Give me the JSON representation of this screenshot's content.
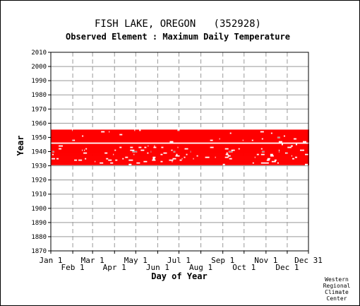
{
  "chart_data": {
    "type": "heatmap",
    "title": "FISH LAKE, OREGON   (352928)",
    "subtitle": "Observed Element : Maximum Daily Temperature",
    "xlabel": "Day of Year",
    "ylabel": "Year",
    "x_ticks_top_row": [
      "Jan 1",
      "Mar 1",
      "May 1",
      "Jul 1",
      "Sep 1",
      "Nov 1",
      "Dec 31"
    ],
    "x_ticks_bottom_row": [
      "Feb 1",
      "Apr 1",
      "Jun 1",
      "Aug 1",
      "Oct 1",
      "Dec 1"
    ],
    "x_tick_days": [
      1,
      32,
      60,
      91,
      121,
      152,
      182,
      213,
      244,
      274,
      305,
      335,
      365
    ],
    "y_ticks": [
      1870,
      1880,
      1890,
      1900,
      1910,
      1920,
      1930,
      1940,
      1950,
      1960,
      1970,
      1980,
      1990,
      2000,
      2010
    ],
    "xlim": [
      1,
      365
    ],
    "ylim": [
      1870,
      2010
    ],
    "grid": true,
    "data_color": "#ff0000",
    "year_coverage": [
      {
        "year": 1931,
        "coverage": 0.97
      },
      {
        "year": 1932,
        "coverage": 0.92
      },
      {
        "year": 1933,
        "coverage": 0.95
      },
      {
        "year": 1934,
        "coverage": 0.88
      },
      {
        "year": 1935,
        "coverage": 0.9
      },
      {
        "year": 1936,
        "coverage": 0.93
      },
      {
        "year": 1937,
        "coverage": 0.95
      },
      {
        "year": 1938,
        "coverage": 0.9
      },
      {
        "year": 1939,
        "coverage": 0.94
      },
      {
        "year": 1940,
        "coverage": 0.93
      },
      {
        "year": 1941,
        "coverage": 0.92
      },
      {
        "year": 1942,
        "coverage": 0.94
      },
      {
        "year": 1943,
        "coverage": 0.91
      },
      {
        "year": 1944,
        "coverage": 0.97
      },
      {
        "year": 1945,
        "coverage": 0.99
      },
      {
        "year": 1946,
        "coverage": 0.0
      },
      {
        "year": 1947,
        "coverage": 0.96
      },
      {
        "year": 1948,
        "coverage": 0.97
      },
      {
        "year": 1949,
        "coverage": 0.98
      },
      {
        "year": 1950,
        "coverage": 0.99
      },
      {
        "year": 1951,
        "coverage": 0.99
      },
      {
        "year": 1952,
        "coverage": 0.99
      },
      {
        "year": 1953,
        "coverage": 0.99
      },
      {
        "year": 1954,
        "coverage": 0.97
      },
      {
        "year": 1955,
        "coverage": 0.98
      }
    ]
  },
  "credit": {
    "line1": "Western",
    "line2": "Regional",
    "line3": "Climate",
    "line4": "Center"
  }
}
